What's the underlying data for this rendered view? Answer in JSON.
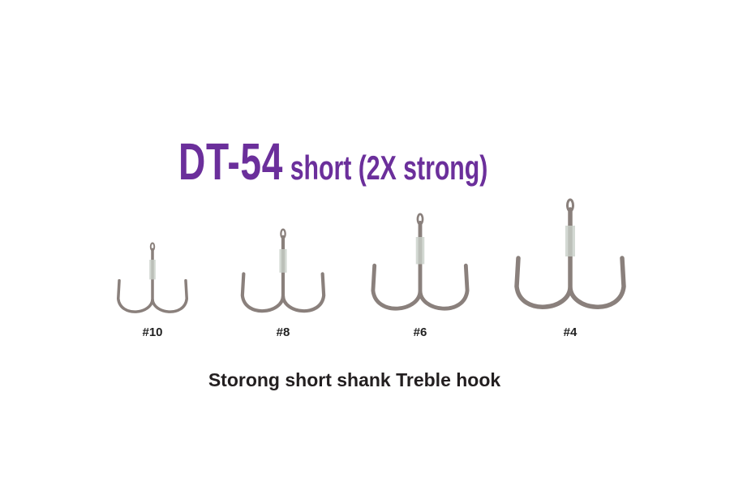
{
  "title": {
    "model": "DT-54",
    "description": "short (2X strong)",
    "color": "#6b2f9b"
  },
  "hooks": [
    {
      "size_label": "#10"
    },
    {
      "size_label": "#8"
    },
    {
      "size_label": "#6"
    },
    {
      "size_label": "#4"
    }
  ],
  "caption": "Storong short shank Treble hook",
  "hook_color": "#8a807c"
}
